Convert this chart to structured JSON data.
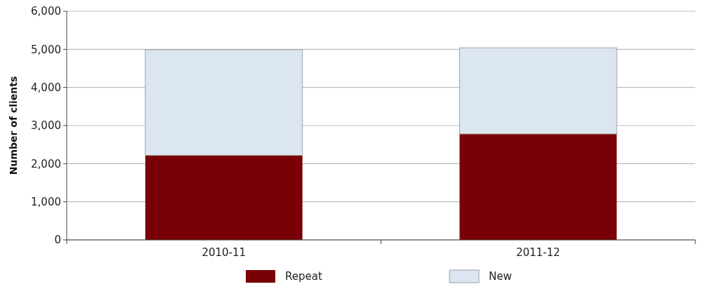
{
  "chart_data": {
    "type": "bar",
    "ylabel": "Number of clients",
    "categories": [
      "2010-11",
      "2011-12"
    ],
    "series": [
      {
        "name": "Repeat",
        "color": "#7a0008",
        "values": [
          2220,
          2780
        ]
      },
      {
        "name": "New",
        "color": "#dce6f0",
        "values": [
          2770,
          2260
        ]
      }
    ],
    "stacked": true,
    "ylim": [
      0,
      6000
    ],
    "yticks": [
      {
        "value": 0,
        "label": "0"
      },
      {
        "value": 1000,
        "label": "1,000"
      },
      {
        "value": 2000,
        "label": "2,000"
      },
      {
        "value": 3000,
        "label": "3,000"
      },
      {
        "value": 4000,
        "label": "4,000"
      },
      {
        "value": 5000,
        "label": "5,000"
      },
      {
        "value": 6000,
        "label": "6,000"
      }
    ],
    "grid": "y",
    "legend": "bottom"
  }
}
